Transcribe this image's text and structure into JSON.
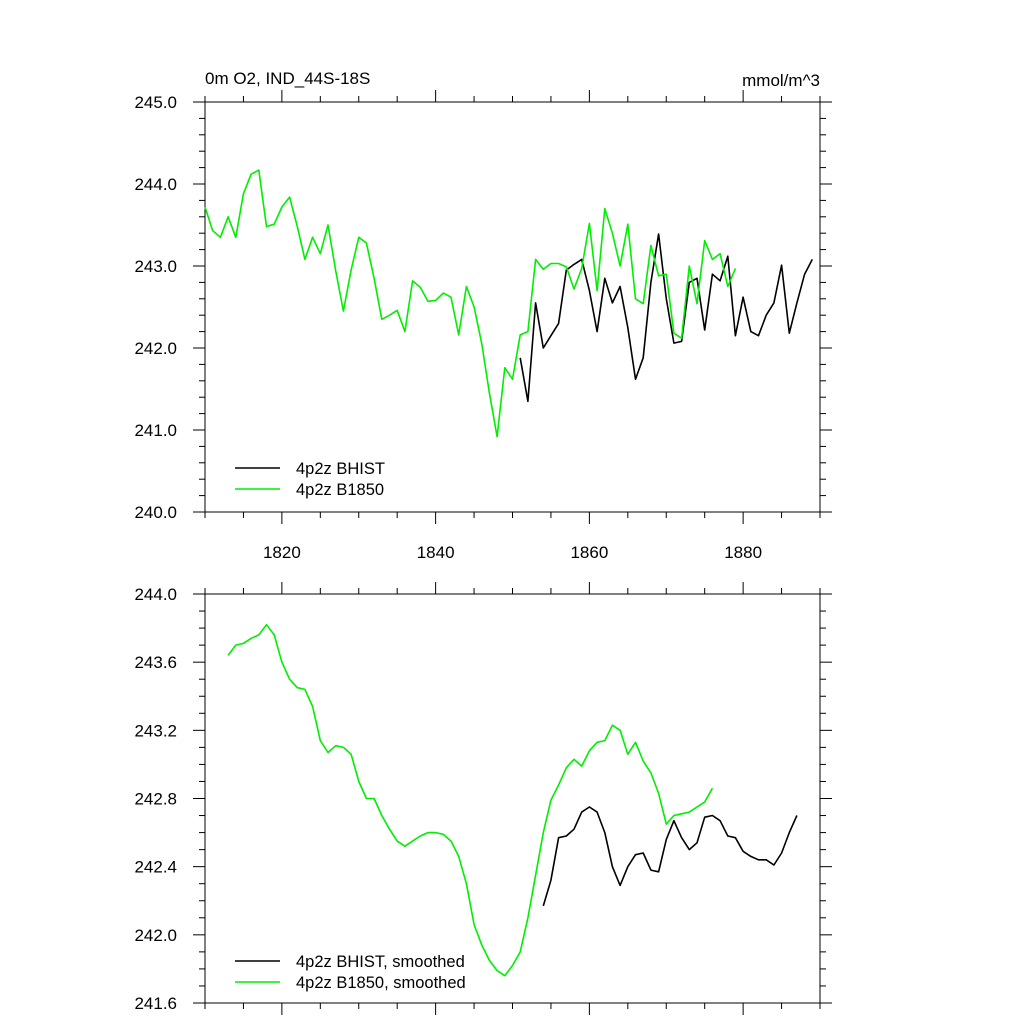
{
  "header": {
    "title": "0m O2, IND_44S-18S",
    "units": "mmol/m^3"
  },
  "colors": {
    "bhist": "#000000",
    "b1850": "#00ee00",
    "frame": "#000000"
  },
  "chart_data": [
    {
      "type": "line",
      "title": "0m O2, IND_44S-18S",
      "units": "mmol/m^3",
      "xlim": [
        1810,
        1890
      ],
      "ylim": [
        240.0,
        245.0
      ],
      "x_ticks": [
        1820,
        1840,
        1860,
        1880
      ],
      "y_ticks": [
        "240.0",
        "241.0",
        "242.0",
        "243.0",
        "244.0",
        "245.0"
      ],
      "legend_position": "bottom-left",
      "series": [
        {
          "name": "4p2z BHIST",
          "color": "#000000",
          "x": [
            1851,
            1852,
            1853,
            1854,
            1855,
            1856,
            1857,
            1858,
            1859,
            1860,
            1861,
            1862,
            1863,
            1864,
            1865,
            1866,
            1867,
            1868,
            1869,
            1870,
            1871,
            1872,
            1873,
            1874,
            1875,
            1876,
            1877,
            1878,
            1879,
            1880,
            1881,
            1882,
            1883,
            1884,
            1885,
            1886,
            1887,
            1888,
            1889
          ],
          "y": [
            241.88,
            241.35,
            242.55,
            242.0,
            242.15,
            242.3,
            242.95,
            243.02,
            243.08,
            242.7,
            242.2,
            242.85,
            242.55,
            242.75,
            242.25,
            241.62,
            241.88,
            242.8,
            243.39,
            242.6,
            242.06,
            242.08,
            242.8,
            242.85,
            242.22,
            242.9,
            242.82,
            243.12,
            242.15,
            242.62,
            242.2,
            242.15,
            242.4,
            242.55,
            243.01,
            242.18,
            242.55,
            242.9,
            243.08
          ]
        },
        {
          "name": "4p2z B1850",
          "color": "#00ee00",
          "x": [
            1810,
            1811,
            1812,
            1813,
            1814,
            1815,
            1816,
            1817,
            1818,
            1819,
            1820,
            1821,
            1822,
            1823,
            1824,
            1825,
            1826,
            1827,
            1828,
            1829,
            1830,
            1831,
            1832,
            1833,
            1834,
            1835,
            1836,
            1837,
            1838,
            1839,
            1840,
            1841,
            1842,
            1843,
            1844,
            1845,
            1846,
            1847,
            1848,
            1849,
            1850,
            1851,
            1852,
            1853,
            1854,
            1855,
            1856,
            1857,
            1858,
            1859,
            1860,
            1861,
            1862,
            1863,
            1864,
            1865,
            1866,
            1867,
            1868,
            1869,
            1870,
            1871,
            1872,
            1873,
            1874,
            1875,
            1876,
            1877,
            1878,
            1879
          ],
          "y": [
            243.72,
            243.43,
            243.35,
            243.6,
            243.35,
            243.88,
            244.12,
            244.17,
            243.48,
            243.51,
            243.72,
            243.84,
            243.48,
            243.08,
            243.35,
            243.15,
            243.5,
            242.94,
            242.45,
            242.95,
            243.35,
            243.28,
            242.85,
            242.35,
            242.4,
            242.46,
            242.2,
            242.82,
            242.74,
            242.57,
            242.58,
            242.67,
            242.62,
            242.16,
            242.75,
            242.5,
            242.05,
            241.45,
            240.92,
            241.76,
            241.62,
            242.16,
            242.2,
            243.08,
            242.96,
            243.03,
            243.03,
            242.99,
            242.72,
            242.97,
            243.52,
            242.7,
            243.7,
            243.4,
            243.0,
            243.51,
            242.6,
            242.54,
            243.25,
            242.88,
            242.9,
            242.18,
            242.12,
            243.0,
            242.54,
            243.31,
            243.08,
            243.15,
            242.75,
            242.97
          ]
        }
      ]
    },
    {
      "type": "line",
      "xlim": [
        1810,
        1890
      ],
      "ylim": [
        241.6,
        244.0
      ],
      "x_ticks": [
        1820,
        1840,
        1860,
        1880
      ],
      "y_ticks": [
        "241.6",
        "242.0",
        "242.4",
        "242.8",
        "243.2",
        "243.6",
        "244.0"
      ],
      "legend_position": "bottom-left",
      "series": [
        {
          "name": "4p2z BHIST, smoothed",
          "color": "#000000",
          "x": [
            1854,
            1855,
            1856,
            1857,
            1858,
            1859,
            1860,
            1861,
            1862,
            1863,
            1864,
            1865,
            1866,
            1867,
            1868,
            1869,
            1870,
            1871,
            1872,
            1873,
            1874,
            1875,
            1876,
            1877,
            1878,
            1879,
            1880,
            1881,
            1882,
            1883,
            1884,
            1885,
            1886,
            1887
          ],
          "y": [
            242.17,
            242.32,
            242.57,
            242.58,
            242.62,
            242.72,
            242.75,
            242.72,
            242.6,
            242.4,
            242.29,
            242.4,
            242.47,
            242.48,
            242.38,
            242.37,
            242.56,
            242.67,
            242.57,
            242.5,
            242.54,
            242.69,
            242.7,
            242.67,
            242.58,
            242.57,
            242.49,
            242.46,
            242.44,
            242.44,
            242.41,
            242.48,
            242.6,
            242.7
          ]
        },
        {
          "name": "4p2z B1850, smoothed",
          "color": "#00ee00",
          "x": [
            1813,
            1814,
            1815,
            1816,
            1817,
            1818,
            1819,
            1820,
            1821,
            1822,
            1823,
            1824,
            1825,
            1826,
            1827,
            1828,
            1829,
            1830,
            1831,
            1832,
            1833,
            1834,
            1835,
            1836,
            1837,
            1838,
            1839,
            1840,
            1841,
            1842,
            1843,
            1844,
            1845,
            1846,
            1847,
            1848,
            1849,
            1850,
            1851,
            1852,
            1853,
            1854,
            1855,
            1856,
            1857,
            1858,
            1859,
            1860,
            1861,
            1862,
            1863,
            1864,
            1865,
            1866,
            1867,
            1868,
            1869,
            1870,
            1871,
            1872,
            1873,
            1874,
            1875,
            1876
          ],
          "y": [
            243.64,
            243.7,
            243.71,
            243.74,
            243.76,
            243.82,
            243.76,
            243.6,
            243.5,
            243.45,
            243.44,
            243.34,
            243.14,
            243.07,
            243.11,
            243.1,
            243.06,
            242.9,
            242.8,
            242.8,
            242.7,
            242.62,
            242.55,
            242.52,
            242.55,
            242.58,
            242.6,
            242.6,
            242.59,
            242.55,
            242.46,
            242.3,
            242.06,
            241.94,
            241.85,
            241.79,
            241.76,
            241.82,
            241.9,
            242.1,
            242.35,
            242.6,
            242.79,
            242.88,
            242.98,
            243.03,
            242.99,
            243.08,
            243.13,
            243.14,
            243.23,
            243.2,
            243.06,
            243.13,
            243.02,
            242.95,
            242.83,
            242.65,
            242.7,
            242.71,
            242.72,
            242.75,
            242.78,
            242.86
          ]
        }
      ]
    }
  ]
}
